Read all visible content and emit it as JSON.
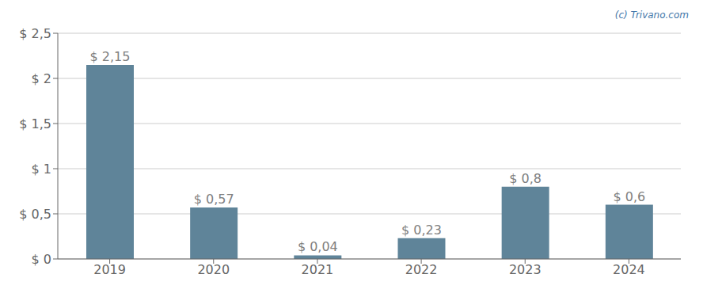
{
  "chart_data": {
    "type": "bar",
    "categories": [
      "2019",
      "2020",
      "2021",
      "2022",
      "2023",
      "2024"
    ],
    "values": [
      2.15,
      0.57,
      0.04,
      0.23,
      0.8,
      0.6
    ],
    "value_labels": [
      "$ 2,15",
      "$ 0,57",
      "$ 0,04",
      "$ 0,23",
      "$ 0,8",
      "$ 0,6"
    ],
    "data_labels": true,
    "color": "#5f8499",
    "ylim": [
      0,
      2.5
    ],
    "yticks": [
      {
        "value": 0,
        "label": "$ 0"
      },
      {
        "value": 0.5,
        "label": "$ 0,5"
      },
      {
        "value": 1.0,
        "label": "$ 1"
      },
      {
        "value": 1.5,
        "label": "$ 1,5"
      },
      {
        "value": 2.0,
        "label": "$ 2"
      },
      {
        "value": 2.5,
        "label": "$ 2,5"
      }
    ],
    "grid": true,
    "annotations": [
      "(c) Trivano.com"
    ]
  }
}
